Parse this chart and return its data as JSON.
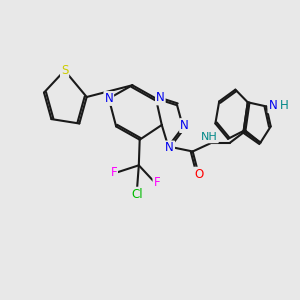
{
  "background_color": "#e8e8e8",
  "bond_color": "#1a1a1a",
  "bond_width": 1.5,
  "font_size": 8.5,
  "colors": {
    "N": "#0000ee",
    "O": "#ff0000",
    "S": "#cccc00",
    "F": "#ff00ff",
    "Cl": "#00bb00",
    "NH_teal": "#008888",
    "C": "#1a1a1a"
  },
  "figsize": [
    3.0,
    3.0
  ],
  "dpi": 100
}
